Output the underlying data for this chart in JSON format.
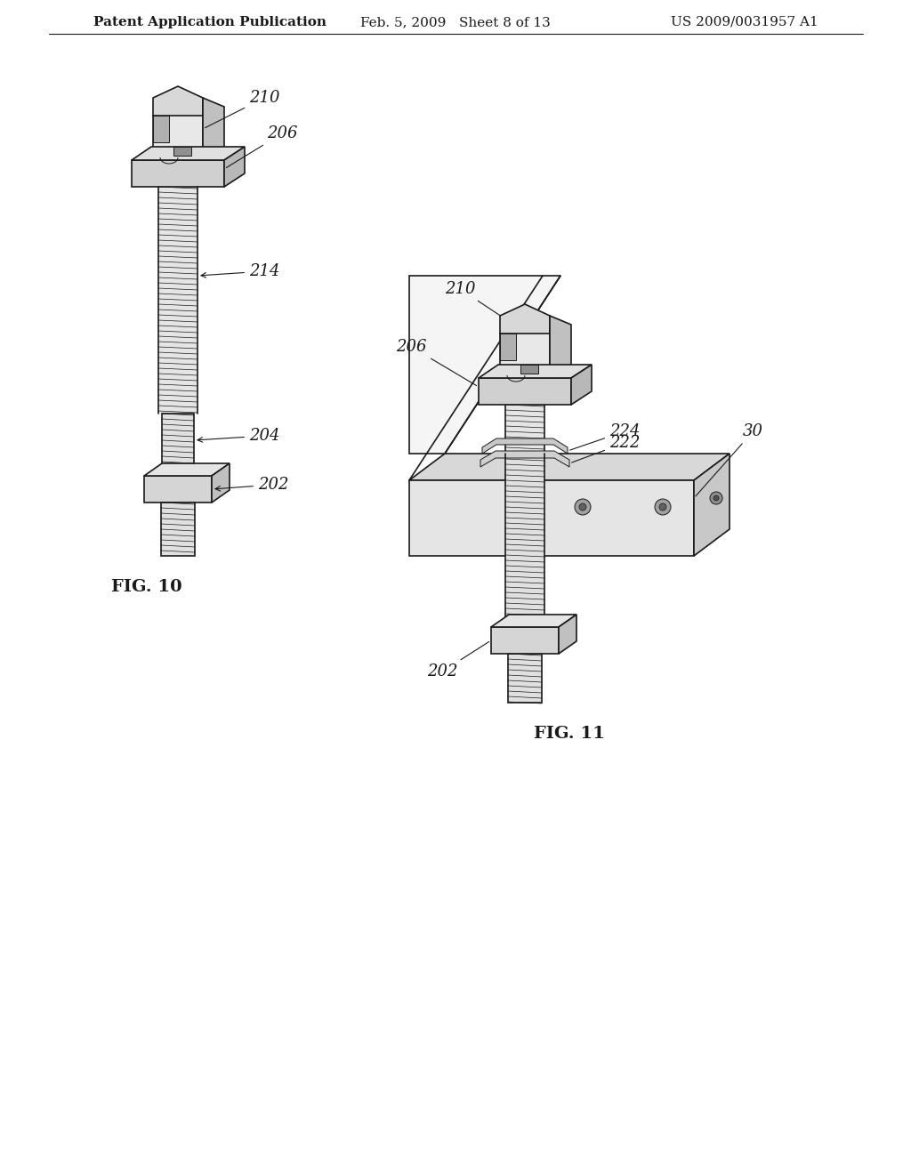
{
  "bg_color": "#ffffff",
  "header_left": "Patent Application Publication",
  "header_mid": "Feb. 5, 2009   Sheet 8 of 13",
  "header_right": "US 2009/0031957 A1",
  "fig10_label": "FIG. 10",
  "fig11_label": "FIG. 11",
  "line_color": "#1a1a1a",
  "label_color": "#1a1a1a",
  "label_fontsize": 13,
  "header_fontsize": 11,
  "fig_label_fontsize": 14
}
